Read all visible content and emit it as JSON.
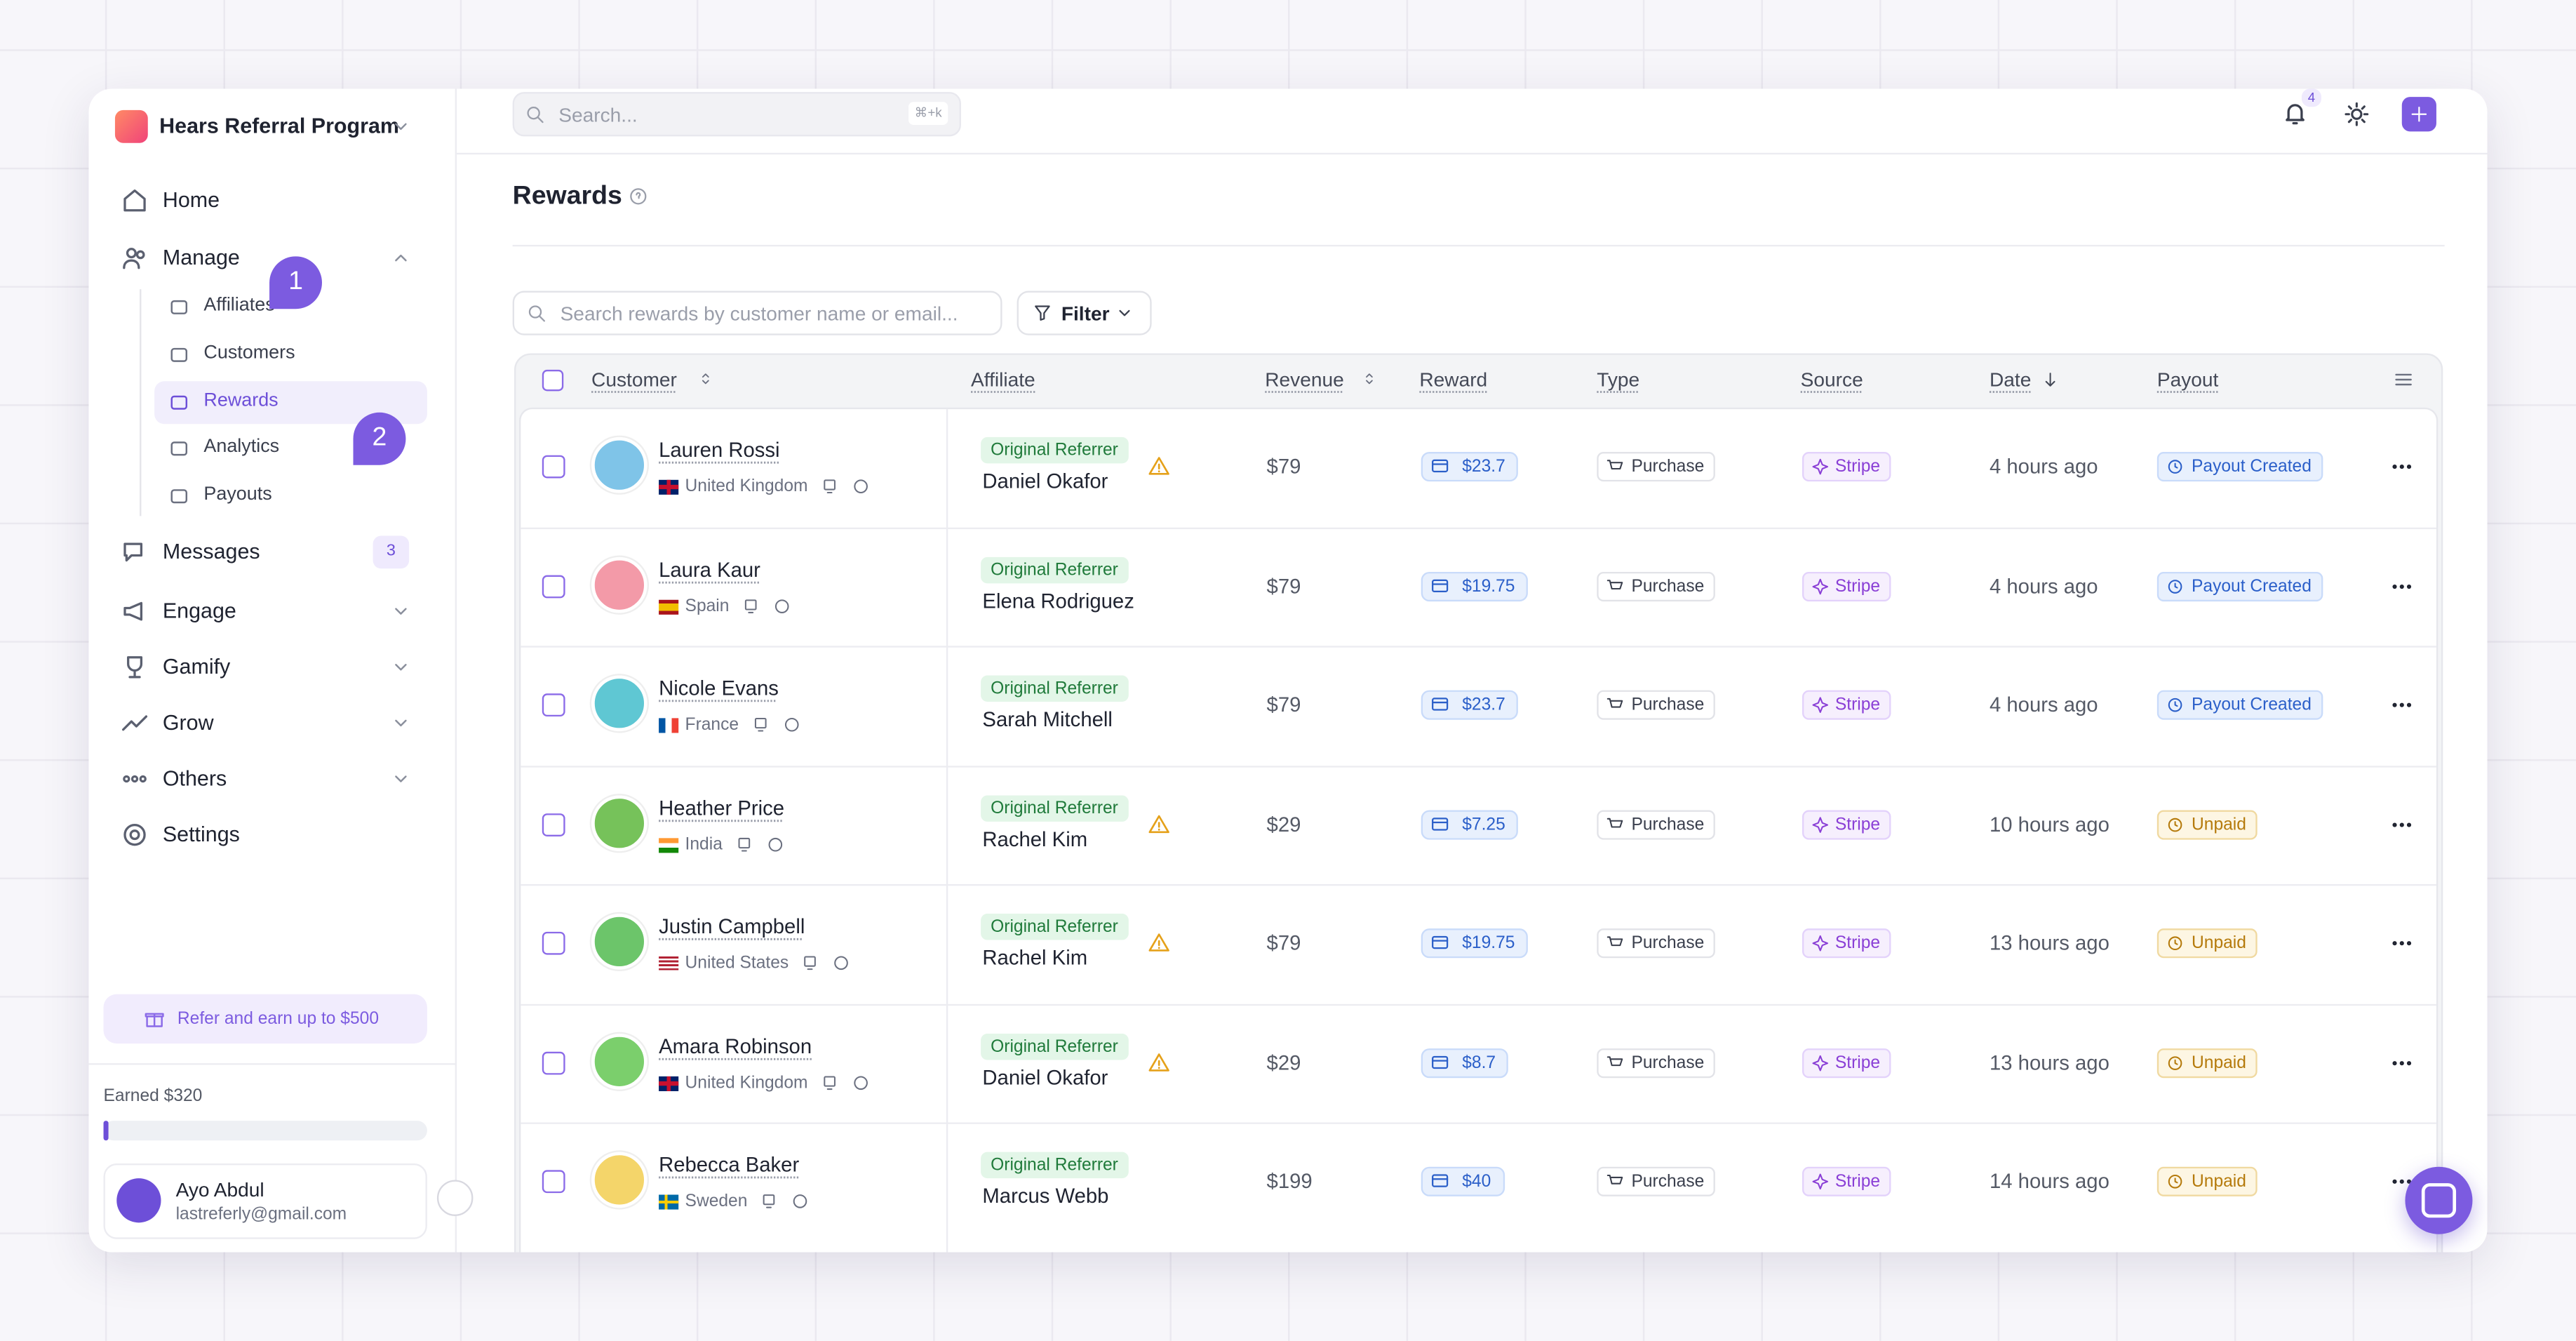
{
  "sidebar": {
    "workspace": "Hears Referral Program",
    "nav": [
      {
        "label": "Home"
      },
      {
        "label": "Manage",
        "children": [
          "Affiliates",
          "Customers",
          "Rewards",
          "Analytics",
          "Payouts"
        ]
      },
      {
        "label": "Messages",
        "badge": "3"
      },
      {
        "label": "Engage"
      },
      {
        "label": "Gamify"
      },
      {
        "label": "Grow"
      },
      {
        "label": "Others"
      },
      {
        "label": "Settings"
      }
    ],
    "steps": [
      "1",
      "2"
    ],
    "refer": "Refer and earn up to $500",
    "earned": "Earned $320",
    "user": {
      "name": "Ayo Abdul",
      "email": "lastreferly@gmail.com"
    }
  },
  "topbar": {
    "search": "Search...",
    "shortcut": "⌘+k",
    "notifications": "4"
  },
  "page": {
    "title": "Rewards",
    "table_search": "Search rewards by customer name or email...",
    "filter": "Filter"
  },
  "table": {
    "columns": [
      "Customer",
      "Affiliate",
      "Revenue",
      "Reward",
      "Type",
      "Source",
      "Date",
      "Payout"
    ],
    "rows": [
      {
        "customer": "Lauren Rossi",
        "country": "United Kingdom",
        "tag": "Original Referrer",
        "affiliate": "Daniel Okafor",
        "warning": true,
        "revenue": "$79",
        "reward": "$23.7",
        "type": "Purchase",
        "source": "Stripe",
        "date": "4 hours ago",
        "payout": "Payout Created"
      },
      {
        "customer": "Laura Kaur",
        "country": "Spain",
        "tag": "Original Referrer",
        "affiliate": "Elena Rodriguez",
        "warning": false,
        "revenue": "$79",
        "reward": "$19.75",
        "type": "Purchase",
        "source": "Stripe",
        "date": "4 hours ago",
        "payout": "Payout Created"
      },
      {
        "customer": "Nicole Evans",
        "country": "France",
        "tag": "Original Referrer",
        "affiliate": "Sarah Mitchell",
        "warning": false,
        "revenue": "$79",
        "reward": "$23.7",
        "type": "Purchase",
        "source": "Stripe",
        "date": "4 hours ago",
        "payout": "Payout Created"
      },
      {
        "customer": "Heather Price",
        "country": "India",
        "tag": "Original Referrer",
        "affiliate": "Rachel Kim",
        "warning": true,
        "revenue": "$29",
        "reward": "$7.25",
        "type": "Purchase",
        "source": "Stripe",
        "date": "10 hours ago",
        "payout": "Unpaid"
      },
      {
        "customer": "Justin Campbell",
        "country": "United States",
        "tag": "Original Referrer",
        "affiliate": "Rachel Kim",
        "warning": true,
        "revenue": "$79",
        "reward": "$19.75",
        "type": "Purchase",
        "source": "Stripe",
        "date": "13 hours ago",
        "payout": "Unpaid"
      },
      {
        "customer": "Amara Robinson",
        "country": "United Kingdom",
        "tag": "Original Referrer",
        "affiliate": "Daniel Okafor",
        "warning": true,
        "revenue": "$29",
        "reward": "$8.7",
        "type": "Purchase",
        "source": "Stripe",
        "date": "13 hours ago",
        "payout": "Unpaid"
      },
      {
        "customer": "Rebecca Baker",
        "country": "Sweden",
        "tag": "Original Referrer",
        "affiliate": "Marcus Webb",
        "warning": false,
        "revenue": "$199",
        "reward": "$40",
        "type": "Purchase",
        "source": "Stripe",
        "date": "14 hours ago",
        "payout": "Unpaid"
      }
    ]
  }
}
